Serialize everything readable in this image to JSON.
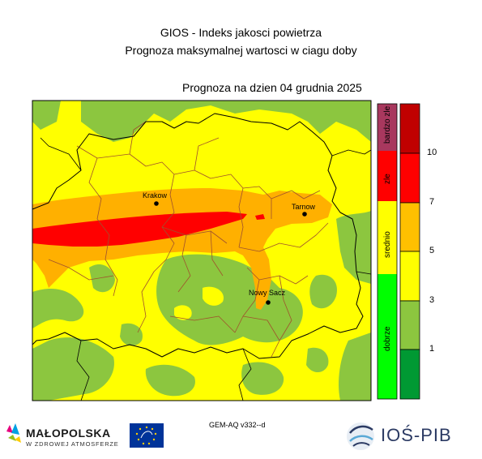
{
  "header": {
    "title": "GIOS - Indeks jakosci powietrza",
    "subtitle": "Prognoza maksymalnej wartosci w ciagu doby",
    "date_label": "Prognoza na dzien  04 grudnia 2025"
  },
  "cities": [
    {
      "name": "Krakow"
    },
    {
      "name": "Tarnow"
    },
    {
      "name": "Nowy Sacz"
    }
  ],
  "legend": {
    "categories": [
      {
        "label": "bardzo zle",
        "color": "#a8385e"
      },
      {
        "label": "zle",
        "color": "#ff0000"
      },
      {
        "label": "srednio",
        "color": "#ffff00"
      },
      {
        "label": "dobrze",
        "color": "#00ff00"
      }
    ],
    "scale_colors": [
      "#009933",
      "#8cc63f",
      "#ffff00",
      "#ffc000",
      "#ff0000",
      "#c00000"
    ],
    "scale_ticks": [
      "1",
      "3",
      "5",
      "7",
      "10"
    ]
  },
  "footer": {
    "model": "GEM-AQ v332--d",
    "left_logo_name": "MAŁOPOLSKA",
    "left_logo_tagline": "W ZDROWEJ ATMOSFERZE",
    "right_logo_name": "IOŚ-PIB"
  },
  "colors": {
    "good": "#8cc63f",
    "moderate": "#ffff00",
    "elevated": "#ffb000",
    "bad": "#ff0000"
  }
}
